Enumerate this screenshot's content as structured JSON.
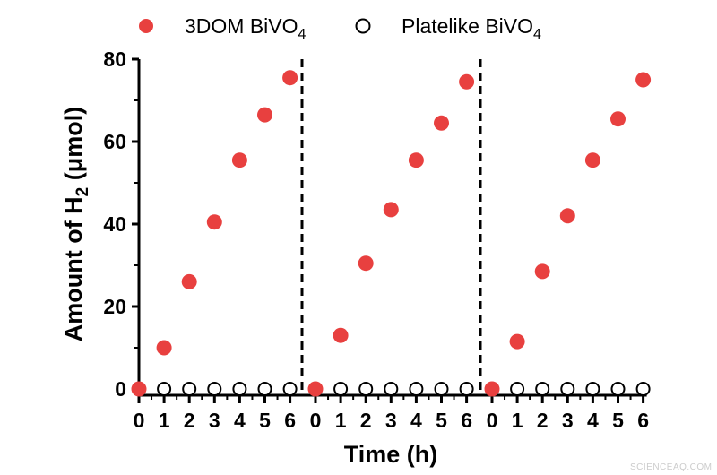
{
  "chart_data": {
    "type": "scatter",
    "xlabel": "Time (h)",
    "ylabel": "Amount of H2 (μmol)",
    "ylabel_parts": {
      "main": "Amount of H",
      "sub": "2",
      "rest": " (μmol)"
    },
    "ylim": [
      0,
      80
    ],
    "yticks": [
      "0",
      "20",
      "40",
      "60",
      "80"
    ],
    "xticks": [
      "0",
      "1",
      "2",
      "3",
      "4",
      "5",
      "6"
    ],
    "cycles": 3,
    "grid": false,
    "legend_position": "top",
    "series": [
      {
        "name": "3DOM BiVO4",
        "name_parts": {
          "main": "3DOM BiVO",
          "sub": "4"
        },
        "color": "#e8403f",
        "marker": "filled-circle",
        "cycles": [
          [
            0,
            10,
            26,
            40.5,
            55.5,
            66.5,
            75.5
          ],
          [
            0,
            13,
            30.5,
            43.5,
            55.5,
            64.5,
            74.5
          ],
          [
            0,
            11.5,
            28.5,
            42,
            55.5,
            65.5,
            75
          ]
        ]
      },
      {
        "name": "Platelike BiVO4",
        "name_parts": {
          "main": "Platelike BiVO",
          "sub": "4"
        },
        "color": "#000000",
        "marker": "open-circle",
        "cycles": [
          [
            0,
            0,
            0,
            0,
            0,
            0,
            0
          ],
          [
            0,
            0,
            0,
            0,
            0,
            0,
            0
          ],
          [
            0,
            0,
            0,
            0,
            0,
            0,
            0
          ]
        ]
      }
    ]
  },
  "watermark": "SCIENCEAQ.COM"
}
